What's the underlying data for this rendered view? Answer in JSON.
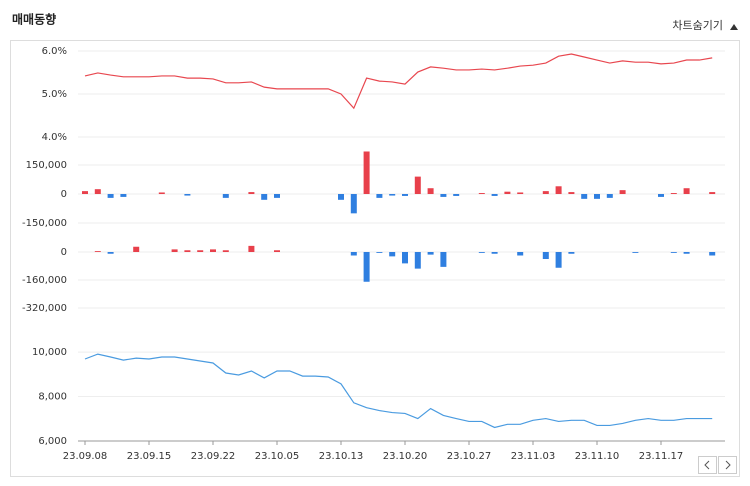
{
  "header": {
    "title": "매매동향",
    "toggle": "차트숨기기"
  },
  "chart_data": [
    {
      "type": "line",
      "color": "#e8474f",
      "ylim": [
        4,
        6
      ],
      "yticks": [
        {
          "value": 6,
          "label": "6.0%"
        },
        {
          "value": 5,
          "label": "5.0%"
        },
        {
          "value": 4,
          "label": "4.0%"
        }
      ],
      "values": [
        5.42,
        5.49,
        5.44,
        5.4,
        5.4,
        5.4,
        5.42,
        5.42,
        5.37,
        5.37,
        5.35,
        5.26,
        5.26,
        5.28,
        5.16,
        5.12,
        5.12,
        5.12,
        5.12,
        5.12,
        5.0,
        4.67,
        5.37,
        5.3,
        5.28,
        5.23,
        5.51,
        5.63,
        5.6,
        5.56,
        5.56,
        5.58,
        5.56,
        5.6,
        5.65,
        5.67,
        5.72,
        5.88,
        5.93,
        5.86,
        5.79,
        5.72,
        5.77,
        5.74,
        5.74,
        5.7,
        5.72,
        5.79,
        5.79,
        5.84
      ]
    },
    {
      "type": "bar",
      "positive_color": "#e8404b",
      "negative_color": "#2f7fe0",
      "ylim": [
        -210000,
        265000
      ],
      "yticks": [
        {
          "value": 150000,
          "label": "150,000"
        },
        0,
        {
          "value": -150000,
          "label": "-150,000"
        }
      ],
      "values": [
        15000,
        25000,
        -20000,
        -15000,
        0,
        0,
        8000,
        0,
        -8000,
        0,
        0,
        -20000,
        0,
        10000,
        -30000,
        -20000,
        0,
        0,
        0,
        0,
        -30000,
        -100000,
        220000,
        -20000,
        -8000,
        -10000,
        90000,
        30000,
        -15000,
        -10000,
        0,
        5000,
        -10000,
        12000,
        8000,
        0,
        15000,
        40000,
        10000,
        -25000,
        -25000,
        -20000,
        20000,
        0,
        0,
        -15000,
        5000,
        30000,
        0,
        10000
      ]
    },
    {
      "type": "bar",
      "positive_color": "#e8404b",
      "negative_color": "#2f7fe0",
      "ylim": [
        -400000,
        70000
      ],
      "yticks": [
        0,
        {
          "value": -160000,
          "label": "-160,000"
        },
        {
          "value": -320000,
          "label": "-320,000"
        }
      ],
      "values": [
        0,
        5000,
        -10000,
        0,
        30000,
        0,
        0,
        15000,
        10000,
        10000,
        15000,
        10000,
        0,
        35000,
        0,
        10000,
        0,
        0,
        0,
        0,
        0,
        -20000,
        -170000,
        -5000,
        -25000,
        -65000,
        -95000,
        -15000,
        -85000,
        0,
        0,
        -5000,
        -10000,
        0,
        -20000,
        0,
        -40000,
        -90000,
        -10000,
        0,
        0,
        0,
        0,
        -5000,
        0,
        0,
        -5000,
        -10000,
        0,
        -20000
      ]
    },
    {
      "type": "line",
      "color": "#4a9be0",
      "ylim": [
        6000,
        10500
      ],
      "yticks": [
        {
          "value": 10000,
          "label": "10,000"
        },
        {
          "value": 8000,
          "label": "8,000"
        },
        {
          "value": 6000,
          "label": "6,000"
        }
      ],
      "categories": [
        "23.09.08",
        null,
        null,
        null,
        null,
        "23.09.15",
        null,
        null,
        null,
        null,
        "23.09.22",
        null,
        null,
        null,
        null,
        "23.10.05",
        null,
        null,
        null,
        null,
        "23.10.13",
        null,
        null,
        null,
        null,
        "23.10.20",
        null,
        null,
        null,
        null,
        "23.10.27",
        null,
        null,
        null,
        null,
        "23.11.03",
        null,
        null,
        null,
        null,
        "23.11.10",
        null,
        null,
        null,
        null,
        "23.11.17",
        null,
        null,
        null,
        null
      ],
      "values": [
        9690,
        9910,
        9780,
        9640,
        9730,
        9690,
        9780,
        9780,
        9690,
        9600,
        9510,
        9060,
        8970,
        9150,
        8840,
        9150,
        9150,
        8920,
        8920,
        8880,
        8570,
        7720,
        7500,
        7370,
        7280,
        7240,
        7010,
        7460,
        7150,
        7010,
        6880,
        6880,
        6610,
        6750,
        6750,
        6930,
        7010,
        6880,
        6930,
        6930,
        6700,
        6700,
        6790,
        6930,
        7010,
        6930,
        6930,
        7010,
        7010,
        7010
      ]
    }
  ]
}
